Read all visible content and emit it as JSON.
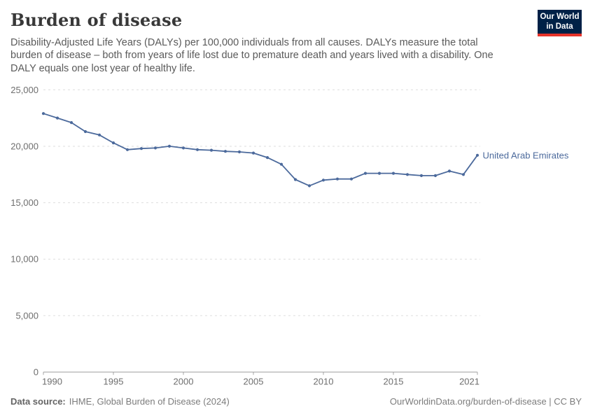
{
  "header": {
    "title": "Burden of disease",
    "subtitle": "Disability-Adjusted Life Years (DALYs) per 100,000 individuals from all causes. DALYs measure the total burden of disease – both from years of life lost due to premature death and years lived with a disability. One DALY equals one lost year of healthy life."
  },
  "logo": {
    "line1": "Our World",
    "line2": "in Data",
    "bg_color": "#002147",
    "accent_color": "#E6332A"
  },
  "chart_data": {
    "type": "line",
    "title": "Burden of disease",
    "ylabel": "DALYs per 100,000 individuals",
    "x": [
      1990,
      1991,
      1992,
      1993,
      1994,
      1995,
      1996,
      1997,
      1998,
      1999,
      2000,
      2001,
      2002,
      2003,
      2004,
      2005,
      2006,
      2007,
      2008,
      2009,
      2010,
      2011,
      2012,
      2013,
      2014,
      2015,
      2016,
      2017,
      2018,
      2019,
      2020,
      2021
    ],
    "series": [
      {
        "name": "United Arab Emirates",
        "color": "#4C6A9C",
        "values": [
          22900,
          22500,
          22100,
          21300,
          21000,
          20300,
          19700,
          19800,
          19850,
          20000,
          19850,
          19700,
          19650,
          19550,
          19500,
          19400,
          19000,
          18400,
          17050,
          16500,
          17000,
          17100,
          17100,
          17600,
          17600,
          17600,
          17500,
          17400,
          17400,
          17800,
          17500,
          19200
        ]
      }
    ],
    "ylim": [
      0,
      25000
    ],
    "yticks": [
      0,
      5000,
      10000,
      15000,
      20000,
      25000
    ],
    "xticks": [
      1990,
      1995,
      2000,
      2005,
      2010,
      2015,
      2021
    ],
    "grid": "horizontal-dashed",
    "legend_position": "end-of-line-label"
  },
  "footer": {
    "source_label": "Data source:",
    "source_value": "IHME, Global Burden of Disease (2024)",
    "right_text": "OurWorldinData.org/burden-of-disease | CC BY"
  }
}
